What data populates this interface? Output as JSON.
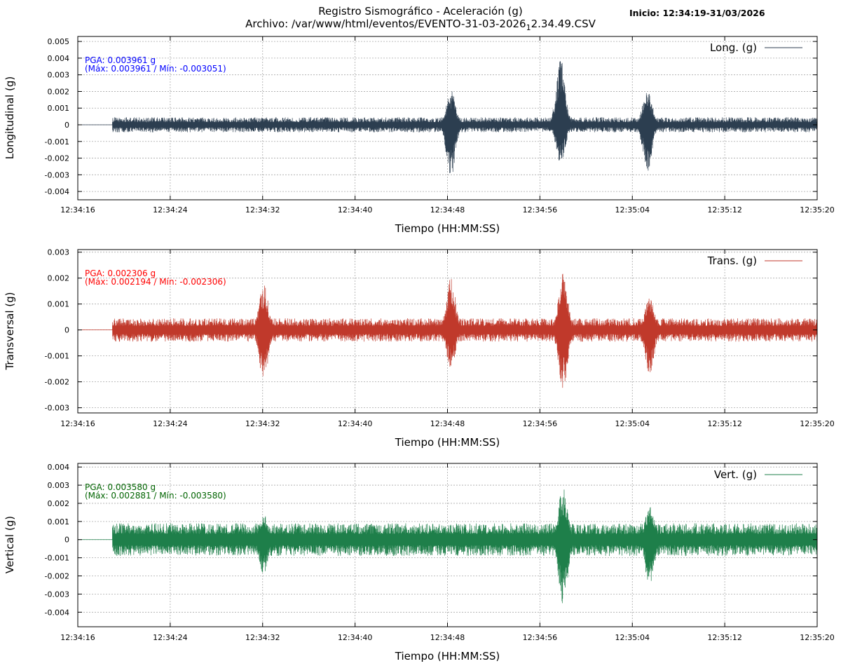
{
  "header": {
    "title": "Registro Sismográfico - Aceleración (g)",
    "subtitle_main": "Archivo: /var/www/html/eventos/EVENTO-31-03-2026",
    "subtitle_sub": "1",
    "subtitle_tail": "2.34.49.CSV",
    "start_label": "Inicio: 12:34:19-31/03/2026"
  },
  "chart_data": [
    {
      "type": "line",
      "ylabel": "Longitudinal (g)",
      "xlabel": "Tiempo (HH:MM:SS)",
      "legend": "Long. (g)",
      "legend_position": "top-right",
      "color": "#2c3e50",
      "grid": true,
      "xlim": [
        "12:34:16",
        "12:35:20"
      ],
      "x_ticks": [
        "12:34:16",
        "12:34:24",
        "12:34:32",
        "12:34:40",
        "12:34:48",
        "12:34:56",
        "12:35:04",
        "12:35:12",
        "12:35:20"
      ],
      "ylim": [
        -0.0045,
        0.0053
      ],
      "y_ticks": [
        "0.005",
        "0.004",
        "0.003",
        "0.002",
        "0.001",
        "0",
        "-0.001",
        "-0.002",
        "-0.003",
        "-0.004"
      ],
      "y_tick_values": [
        0.005,
        0.004,
        0.003,
        0.002,
        0.001,
        0,
        -0.001,
        -0.002,
        -0.003,
        -0.004
      ],
      "pga_text": "PGA: 0.003961 g",
      "max_min_text": "(Máx: 0.003961 / Mín: -0.003051)",
      "annotation_color": "#0000ff",
      "pga": 0.003961,
      "max": 0.003961,
      "min": -0.003051,
      "flat_until": "12:34:19",
      "noise_amplitude": 0.00045,
      "bursts": [
        {
          "time": "12:34:48.3",
          "peak": 0.0021,
          "trough": -0.0031
        },
        {
          "time": "12:34:57.8",
          "peak": 0.003961,
          "trough": -0.0025
        },
        {
          "time": "12:35:05.3",
          "peak": 0.0023,
          "trough": -0.0029
        }
      ]
    },
    {
      "type": "line",
      "ylabel": "Transversal (g)",
      "xlabel": "Tiempo (HH:MM:SS)",
      "legend": "Trans. (g)",
      "legend_position": "top-right",
      "color": "#c0392b",
      "grid": true,
      "xlim": [
        "12:34:16",
        "12:35:20"
      ],
      "x_ticks": [
        "12:34:16",
        "12:34:24",
        "12:34:32",
        "12:34:40",
        "12:34:48",
        "12:34:56",
        "12:35:04",
        "12:35:12",
        "12:35:20"
      ],
      "ylim": [
        -0.0032,
        0.0031
      ],
      "y_ticks": [
        "0.003",
        "0.002",
        "0.001",
        "0",
        "-0.001",
        "-0.002",
        "-0.003"
      ],
      "y_tick_values": [
        0.003,
        0.002,
        0.001,
        0,
        -0.001,
        -0.002,
        -0.003
      ],
      "pga_text": "PGA: 0.002306 g",
      "max_min_text": "(Máx: 0.002194 / Mín: -0.002306)",
      "annotation_color": "#ff0000",
      "pga": 0.002306,
      "max": 0.002194,
      "min": -0.002306,
      "flat_until": "12:34:19",
      "noise_amplitude": 0.00045,
      "bursts": [
        {
          "time": "12:34:32.1",
          "peak": 0.0018,
          "trough": -0.002
        },
        {
          "time": "12:34:48.3",
          "peak": 0.002,
          "trough": -0.0015
        },
        {
          "time": "12:34:58",
          "peak": 0.002194,
          "trough": -0.002306
        },
        {
          "time": "12:35:05.5",
          "peak": 0.0013,
          "trough": -0.0017
        }
      ]
    },
    {
      "type": "line",
      "ylabel": "Vertical (g)",
      "xlabel": "Tiempo (HH:MM:SS)",
      "legend": "Vert. (g)",
      "legend_position": "top-right",
      "color": "#1e7f4a",
      "grid": true,
      "xlim": [
        "12:34:16",
        "12:35:20"
      ],
      "x_ticks": [
        "12:34:16",
        "12:34:24",
        "12:34:32",
        "12:34:40",
        "12:34:48",
        "12:34:56",
        "12:35:04",
        "12:35:12",
        "12:35:20"
      ],
      "ylim": [
        -0.0048,
        0.0042
      ],
      "y_ticks": [
        "0.004",
        "0.003",
        "0.002",
        "0.001",
        "0",
        "-0.001",
        "-0.002",
        "-0.003",
        "-0.004"
      ],
      "y_tick_values": [
        0.004,
        0.003,
        0.002,
        0.001,
        0,
        -0.001,
        -0.002,
        -0.003,
        -0.004
      ],
      "pga_text": "PGA: 0.003580 g",
      "max_min_text": "(Máx: 0.002881 / Mín: -0.003580)",
      "annotation_color": "#006400",
      "pga": 0.00358,
      "max": 0.002881,
      "min": -0.00358,
      "flat_until": "12:34:19",
      "noise_amplitude": 0.0009,
      "bursts": [
        {
          "time": "12:34:32.1",
          "peak": 0.0014,
          "trough": -0.0019
        },
        {
          "time": "12:34:58",
          "peak": 0.002881,
          "trough": -0.00358
        },
        {
          "time": "12:35:05.5",
          "peak": 0.0019,
          "trough": -0.0026
        }
      ]
    }
  ]
}
